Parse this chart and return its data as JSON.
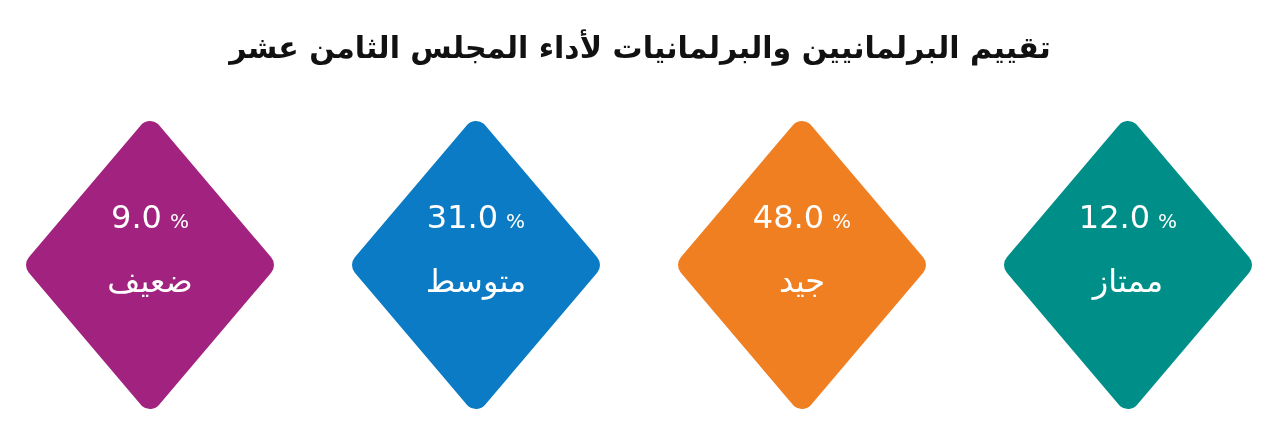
{
  "chart_data": {
    "type": "other",
    "title": "تقييم البرلمانيين والبرلمانيات لأداء المجلس الثامن عشر",
    "categories": [
      "ضعيف",
      "متوسط",
      "جيد",
      "ممتاز"
    ],
    "values": [
      9.0,
      31.0,
      48.0,
      12.0
    ],
    "value_labels": [
      "9.0 %",
      "31.0 %",
      "48.0 %",
      "12.0 %"
    ],
    "colors": [
      "#a1237f",
      "#0a7bc4",
      "#f07f22",
      "#008f88"
    ]
  }
}
